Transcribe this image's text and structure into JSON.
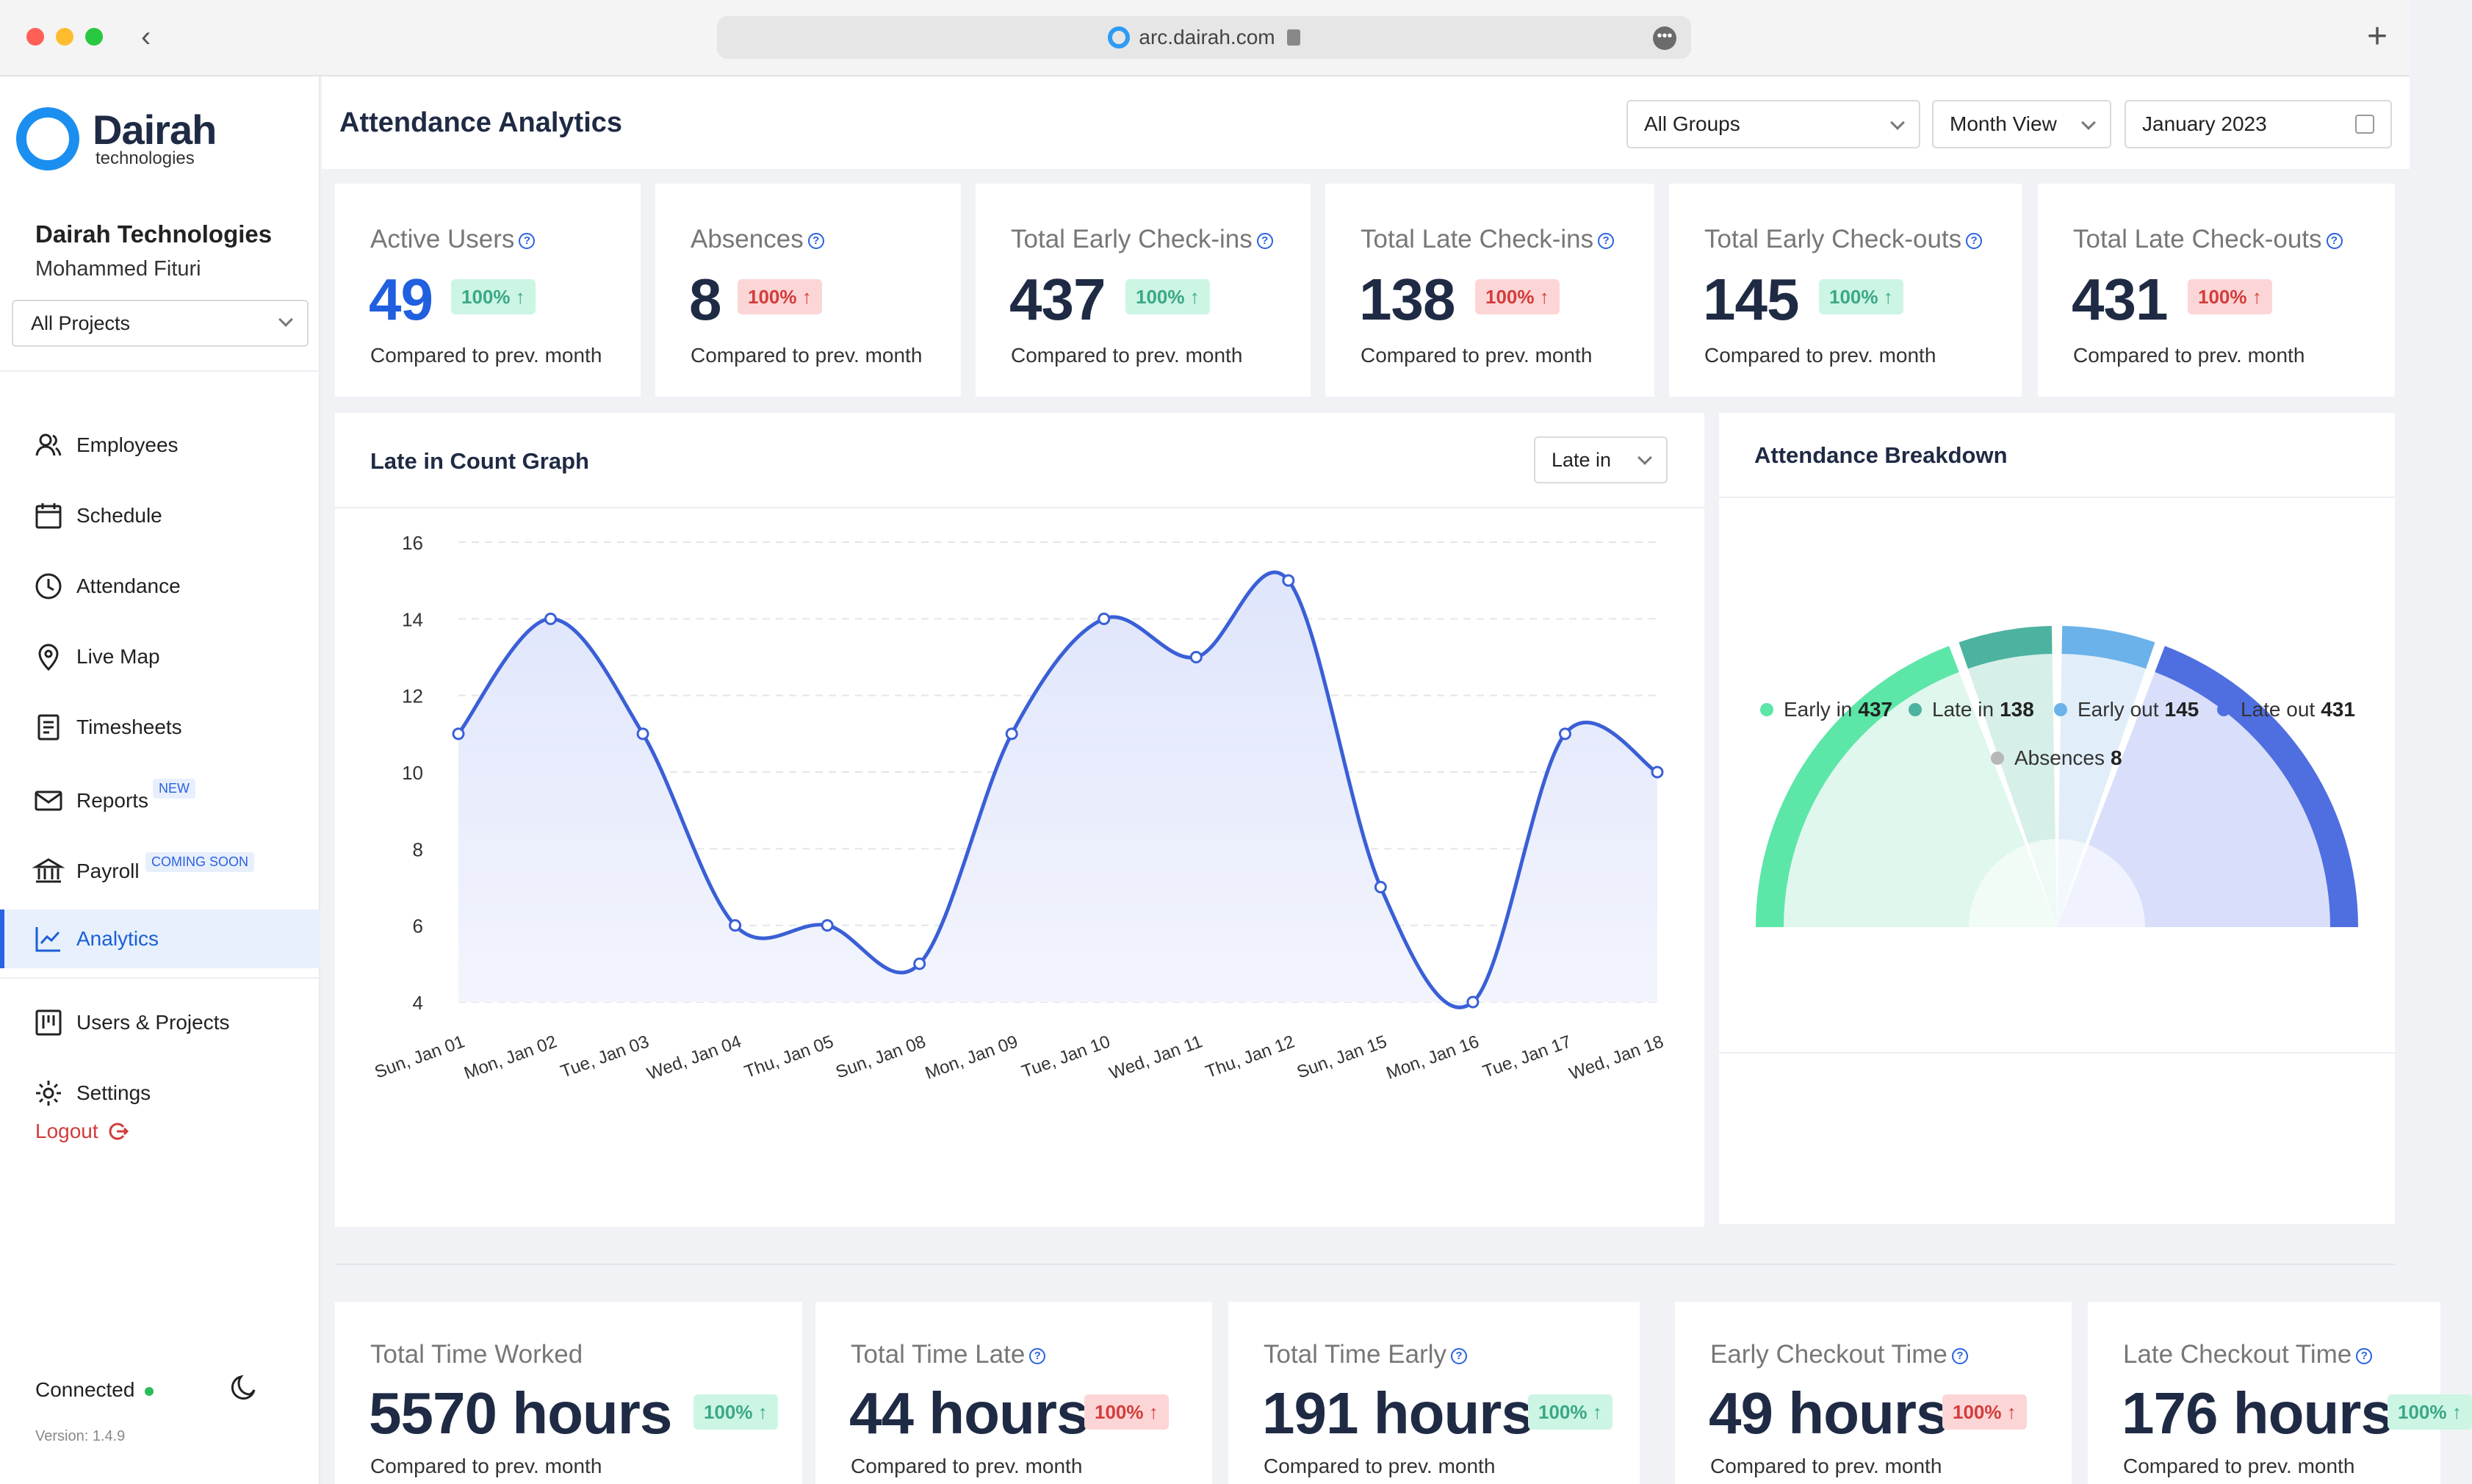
{
  "browser": {
    "url": "arc.dairah.com"
  },
  "brand": {
    "name": "Dairah",
    "sub": "technologies"
  },
  "account": {
    "company": "Dairah Technologies",
    "user": "Mohammed Fituri",
    "project_select": "All Projects"
  },
  "nav": {
    "employees": "Employees",
    "schedule": "Schedule",
    "attendance": "Attendance",
    "live_map": "Live Map",
    "timesheets": "Timesheets",
    "reports": "Reports",
    "reports_badge": "NEW",
    "payroll": "Payroll",
    "payroll_badge": "COMING SOON",
    "analytics": "Analytics",
    "users_projects": "Users & Projects",
    "settings": "Settings",
    "logout": "Logout"
  },
  "status": {
    "connected": "Connected",
    "version": "Version: 1.4.9"
  },
  "header": {
    "title": "Attendance Analytics",
    "group_select": "All Groups",
    "view_select": "Month View",
    "date_select": "January 2023"
  },
  "stats": [
    {
      "title": "Active Users",
      "value": "49",
      "change": "100%",
      "trend": "up",
      "tone": "green",
      "note": "Compared to prev. month"
    },
    {
      "title": "Absences",
      "value": "8",
      "change": "100%",
      "trend": "up",
      "tone": "red",
      "note": "Compared to prev. month"
    },
    {
      "title": "Total Early Check-ins",
      "value": "437",
      "change": "100%",
      "trend": "up",
      "tone": "green",
      "note": "Compared to prev. month"
    },
    {
      "title": "Total Late Check-ins",
      "value": "138",
      "change": "100%",
      "trend": "up",
      "tone": "red",
      "note": "Compared to prev. month"
    },
    {
      "title": "Total Early Check-outs",
      "value": "145",
      "change": "100%",
      "trend": "up",
      "tone": "green",
      "note": "Compared to prev. month"
    },
    {
      "title": "Total Late Check-outs",
      "value": "431",
      "change": "100%",
      "trend": "up",
      "tone": "red",
      "note": "Compared to prev. month"
    }
  ],
  "late_graph": {
    "title": "Late in Count Graph",
    "filter": "Late in"
  },
  "breakdown": {
    "title": "Attendance Breakdown",
    "legend": [
      {
        "label": "Early in",
        "value": "437",
        "color": "#5ce6a8"
      },
      {
        "label": "Late in",
        "value": "138",
        "color": "#4cb3a0"
      },
      {
        "label": "Early out",
        "value": "145",
        "color": "#6bb2ea"
      },
      {
        "label": "Late out",
        "value": "431",
        "color": "#4f6fe0"
      },
      {
        "label": "Absences",
        "value": "8",
        "color": "#b8b8b8"
      }
    ]
  },
  "time_stats": [
    {
      "title": "Total Time Worked",
      "value": "5570 hours",
      "change": "100%",
      "trend": "up",
      "tone": "green",
      "note": "Compared to prev. month"
    },
    {
      "title": "Total Time Late",
      "value": "44 hours",
      "change": "100%",
      "trend": "up",
      "tone": "red",
      "note": "Compared to prev. month"
    },
    {
      "title": "Total Time Early",
      "value": "191 hours",
      "change": "100%",
      "trend": "up",
      "tone": "green",
      "note": "Compared to prev. month"
    },
    {
      "title": "Early Checkout Time",
      "value": "49 hours",
      "change": "100%",
      "trend": "up",
      "tone": "red",
      "note": "Compared to prev. month"
    },
    {
      "title": "Late Checkout Time",
      "value": "176 hours",
      "change": "100%",
      "trend": "up",
      "tone": "green",
      "note": "Compared to prev. month"
    }
  ],
  "chart_data": {
    "type": "area",
    "title": "Late in Count Graph",
    "xlabel": "",
    "ylabel": "",
    "categories": [
      "Sun, Jan 01",
      "Mon, Jan 02",
      "Tue, Jan 03",
      "Wed, Jan 04",
      "Thu, Jan 05",
      "Sun, Jan 08",
      "Mon, Jan 09",
      "Tue, Jan 10",
      "Wed, Jan 11",
      "Thu, Jan 12",
      "Sun, Jan 15",
      "Mon, Jan 16",
      "Tue, Jan 17",
      "Wed, Jan 18"
    ],
    "values": [
      11,
      14,
      11,
      6,
      6,
      5,
      11,
      14,
      13,
      15,
      7,
      4,
      11,
      10
    ],
    "ylim": [
      4,
      16
    ],
    "yticks": [
      4,
      6,
      8,
      10,
      12,
      14,
      16
    ],
    "grid": true,
    "color": "#3a5fd6"
  }
}
